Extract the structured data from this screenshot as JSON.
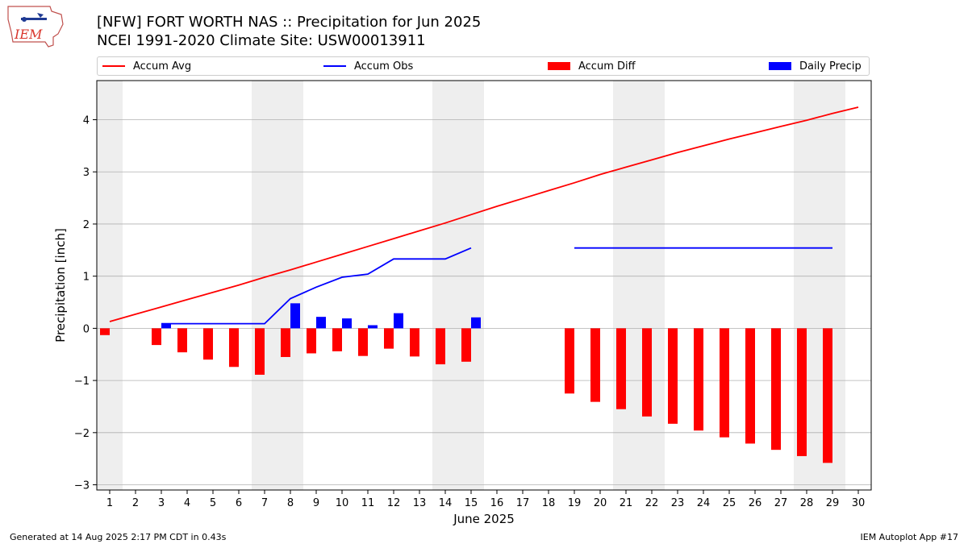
{
  "header": {
    "logo_text": "IEM",
    "title_line1": "[NFW] FORT WORTH NAS :: Precipitation for Jun 2025",
    "title_line2": "NCEI 1991-2020 Climate Site: USW00013911"
  },
  "legend": {
    "placement": "top",
    "items": [
      {
        "label": "Accum Avg",
        "kind": "line",
        "color": "#ff0000"
      },
      {
        "label": "Accum Obs",
        "kind": "line",
        "color": "#0000ff"
      },
      {
        "label": "Accum Diff",
        "kind": "bar",
        "color": "#ff0000"
      },
      {
        "label": "Daily Precip",
        "kind": "bar",
        "color": "#0000ff"
      }
    ]
  },
  "footer": {
    "left": "Generated at 14 Aug 2025 2:17 PM CDT in 0.43s",
    "right": "IEM Autoplot App #17"
  },
  "chart_data": {
    "type": "bar",
    "title": "[NFW] FORT WORTH NAS :: Precipitation for Jun 2025",
    "subtitle": "NCEI 1991-2020 Climate Site: USW00013911",
    "xlabel": "June 2025",
    "ylabel": "Precipitation [inch]",
    "xlim": [
      0.5,
      30.5
    ],
    "ylim": [
      -3.1,
      4.75
    ],
    "xticks": [
      1,
      2,
      3,
      4,
      5,
      6,
      7,
      8,
      9,
      10,
      11,
      12,
      13,
      14,
      15,
      16,
      17,
      18,
      19,
      20,
      21,
      22,
      23,
      24,
      25,
      26,
      27,
      28,
      29,
      30
    ],
    "yticks": [
      -3,
      -2,
      -1,
      0,
      1,
      2,
      3,
      4
    ],
    "grid": "y",
    "weekend_shading": [
      [
        0.5,
        1.5
      ],
      [
        6.5,
        8.5
      ],
      [
        13.5,
        15.5
      ],
      [
        20.5,
        22.5
      ],
      [
        27.5,
        29.5
      ]
    ],
    "series": [
      {
        "name": "Accum Avg",
        "kind": "line",
        "color": "#ff0000",
        "x": [
          1,
          2,
          3,
          4,
          5,
          6,
          7,
          8,
          9,
          10,
          11,
          12,
          13,
          14,
          15,
          16,
          17,
          18,
          19,
          20,
          21,
          22,
          23,
          24,
          25,
          26,
          27,
          28,
          29,
          30
        ],
        "y": [
          0.13,
          0.27,
          0.41,
          0.55,
          0.69,
          0.83,
          0.98,
          1.12,
          1.27,
          1.42,
          1.57,
          1.72,
          1.87,
          2.02,
          2.18,
          2.34,
          2.49,
          2.64,
          2.79,
          2.95,
          3.09,
          3.23,
          3.37,
          3.5,
          3.63,
          3.75,
          3.87,
          3.99,
          4.12,
          4.24
        ]
      },
      {
        "name": "Accum Obs",
        "kind": "line",
        "color": "#0000ff",
        "x": [
          3,
          4,
          5,
          6,
          7,
          8,
          9,
          10,
          11,
          12,
          13,
          14,
          15,
          null,
          19,
          20,
          21,
          22,
          23,
          24,
          25,
          26,
          27,
          28,
          29
        ],
        "y": [
          0.09,
          0.09,
          0.09,
          0.09,
          0.09,
          0.57,
          0.79,
          0.98,
          1.04,
          1.33,
          1.33,
          1.33,
          1.54,
          null,
          1.54,
          1.54,
          1.54,
          1.54,
          1.54,
          1.54,
          1.54,
          1.54,
          1.54,
          1.54,
          1.54
        ]
      },
      {
        "name": "Accum Diff",
        "kind": "bar",
        "color": "#ff0000",
        "x": [
          1,
          3,
          4,
          5,
          6,
          7,
          8,
          9,
          10,
          11,
          12,
          13,
          14,
          15,
          19,
          20,
          21,
          22,
          23,
          24,
          25,
          26,
          27,
          28,
          29
        ],
        "y": [
          -0.13,
          -0.32,
          -0.46,
          -0.6,
          -0.74,
          -0.89,
          -0.55,
          -0.48,
          -0.44,
          -0.53,
          -0.39,
          -0.54,
          -0.69,
          -0.64,
          -1.25,
          -1.41,
          -1.55,
          -1.69,
          -1.83,
          -1.96,
          -2.09,
          -2.21,
          -2.33,
          -2.45,
          -2.58
        ]
      },
      {
        "name": "Daily Precip",
        "kind": "bar",
        "color": "#0000ff",
        "x": [
          3,
          8,
          9,
          10,
          11,
          12,
          15
        ],
        "y": [
          0.09,
          0.48,
          0.22,
          0.19,
          0.06,
          0.29,
          0.21
        ]
      }
    ]
  }
}
